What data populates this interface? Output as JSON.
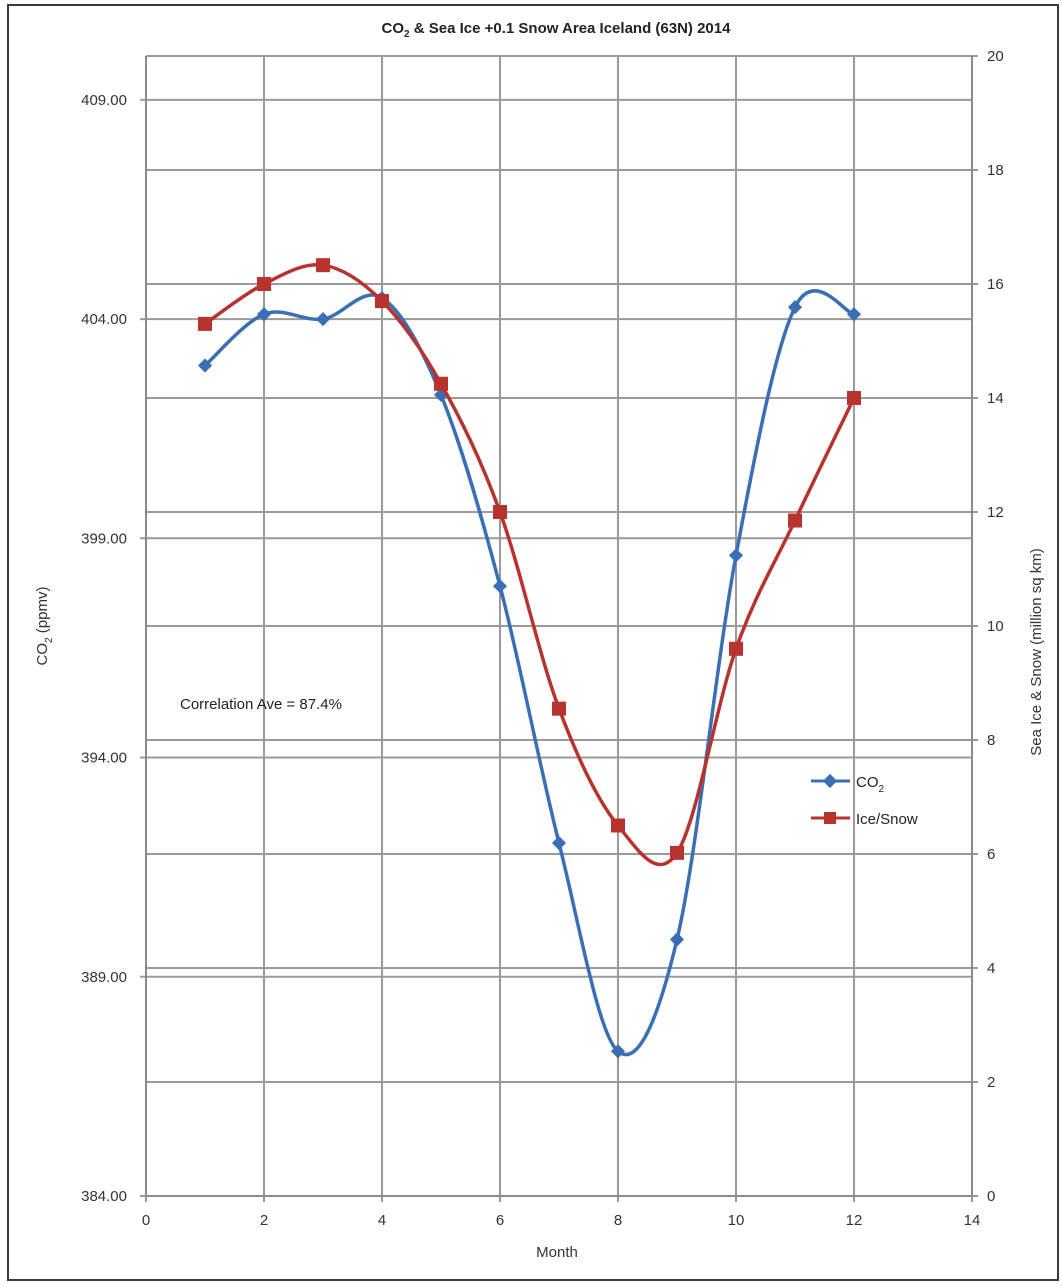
{
  "chart_data": {
    "type": "line",
    "title": "CO2 & Sea Ice +0.1 Snow Area Iceland (63N) 2014",
    "title_parts": {
      "prefix": "CO",
      "subscript": "2",
      "suffix": " & Sea Ice +0.1 Snow Area Iceland (63N) 2014"
    },
    "xlabel": "Month",
    "ylabel_left": "CO2 (ppmv)",
    "ylabel_left_parts": {
      "prefix": "CO",
      "subscript": "2",
      "suffix": " (ppmv)"
    },
    "ylabel_right": "Sea Ice & Snow (million sq km)",
    "xlim": [
      0,
      14
    ],
    "x_ticks": [
      "0",
      "2",
      "4",
      "6",
      "8",
      "10",
      "12",
      "14"
    ],
    "ylim_left": [
      384,
      410
    ],
    "y_left_ticks": [
      "384.00",
      "389.00",
      "394.00",
      "399.00",
      "404.00",
      "409.00"
    ],
    "ylim_right": [
      0,
      20
    ],
    "y_right_ticks": [
      "0",
      "2",
      "4",
      "6",
      "8",
      "10",
      "12",
      "14",
      "16",
      "18",
      "20"
    ],
    "grid": true,
    "legend_position": "right",
    "annotation": "Correlation Ave = 87.4%",
    "series": [
      {
        "name": "CO2",
        "name_parts": {
          "prefix": "CO",
          "subscript": "2"
        },
        "axis": "left",
        "color": "#3a6fb5",
        "marker": "diamond",
        "x": [
          1,
          2,
          3,
          4,
          5,
          6,
          7,
          8,
          9,
          10,
          11,
          12
        ],
        "values": [
          402.94,
          404.11,
          404.0,
          404.48,
          402.27,
          397.91,
          392.05,
          387.3,
          389.85,
          398.61,
          404.27,
          404.11
        ]
      },
      {
        "name": "Ice/Snow",
        "axis": "right",
        "color": "#b8322e",
        "marker": "square",
        "x": [
          1,
          2,
          3,
          4,
          5,
          6,
          7,
          8,
          9,
          10,
          11,
          12
        ],
        "values": [
          15.3,
          16.0,
          16.33,
          15.7,
          14.25,
          12.0,
          8.55,
          6.5,
          6.02,
          9.6,
          11.85,
          14.0
        ]
      }
    ]
  }
}
